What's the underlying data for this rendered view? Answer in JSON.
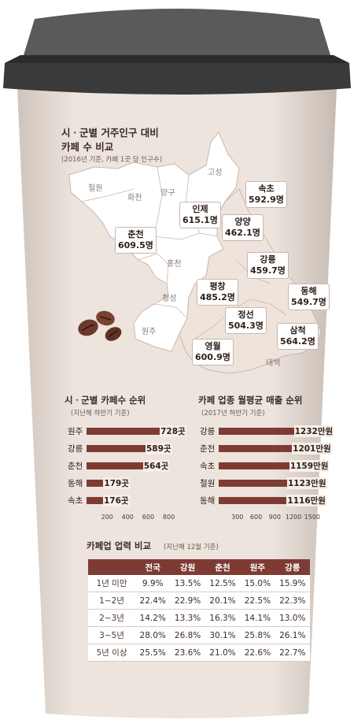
{
  "map": {
    "title_line1": "시ㆍ군별 거주인구 대비",
    "title_line2": "카페 수 비교",
    "subtitle": "(2016년 기준, 카페 1곳 당 인구수)",
    "plain_cities": [
      "고성",
      "철원",
      "화천",
      "양구",
      "홍천",
      "횡성",
      "원주",
      "태백"
    ],
    "stats": [
      {
        "city": "속초",
        "value": "592.9명"
      },
      {
        "city": "인제",
        "value": "615.1명"
      },
      {
        "city": "양양",
        "value": "462.1명"
      },
      {
        "city": "춘천",
        "value": "609.5명"
      },
      {
        "city": "강릉",
        "value": "459.7명"
      },
      {
        "city": "평창",
        "value": "485.2명"
      },
      {
        "city": "동해",
        "value": "549.7명"
      },
      {
        "city": "정선",
        "value": "504.3명"
      },
      {
        "city": "삼척",
        "value": "564.2명"
      },
      {
        "city": "영월",
        "value": "600.9명"
      }
    ]
  },
  "chart_data": [
    {
      "type": "bar",
      "title": "시ㆍ군별 카페수 순위",
      "subtitle": "(지난해 하반기 기준)",
      "categories": [
        "원주",
        "강릉",
        "춘천",
        "동해",
        "속초"
      ],
      "values": [
        728,
        589,
        564,
        179,
        176
      ],
      "value_labels": [
        "728곳",
        "589곳",
        "564곳",
        "179곳",
        "176곳"
      ],
      "xticks": [
        200,
        400,
        600,
        800
      ],
      "xlim": [
        0,
        880
      ]
    },
    {
      "type": "bar",
      "title": "카페 업종 월평균 매출 순위",
      "subtitle": "(2017년 하반기 기준)",
      "categories": [
        "강릉",
        "춘천",
        "속초",
        "철원",
        "동해"
      ],
      "values": [
        1232,
        1201,
        1159,
        1123,
        1116
      ],
      "value_labels": [
        "1232만원",
        "1201만원",
        "1159만원",
        "1123만원",
        "1116만원"
      ],
      "xticks": [
        300,
        600,
        900,
        1200,
        1500
      ],
      "xlim": [
        0,
        1540
      ]
    },
    {
      "type": "table",
      "title": "카페업 업력 비교",
      "subtitle": "(지난해 12월 기준)",
      "columns": [
        "전국",
        "강원",
        "춘천",
        "원주",
        "강릉"
      ],
      "rows": [
        {
          "label": "1년 미만",
          "values": [
            "9.9%",
            "13.5%",
            "12.5%",
            "15.0%",
            "15.9%"
          ]
        },
        {
          "label": "1~2년",
          "values": [
            "22.4%",
            "22.9%",
            "20.1%",
            "22.5%",
            "22.3%"
          ]
        },
        {
          "label": "2~3년",
          "values": [
            "14.2%",
            "13.3%",
            "16.3%",
            "14.1%",
            "13.0%"
          ]
        },
        {
          "label": "3~5년",
          "values": [
            "28.0%",
            "26.8%",
            "30.1%",
            "25.8%",
            "26.1%"
          ]
        },
        {
          "label": "5년 이상",
          "values": [
            "25.5%",
            "23.6%",
            "21.0%",
            "22.6%",
            "22.7%"
          ]
        }
      ]
    }
  ],
  "colors": {
    "cup": "#e6ddd5",
    "lid": "#3f3f3f",
    "bar": "#7e3b34",
    "map": "#ffffff",
    "map_east": "#eee4dc"
  }
}
